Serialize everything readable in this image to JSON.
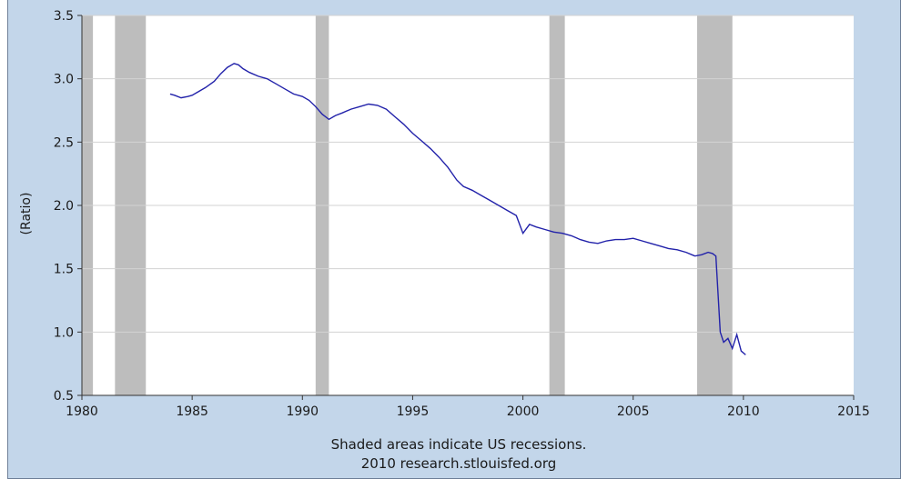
{
  "chart_data": {
    "type": "line",
    "ylabel": "(Ratio)",
    "xlim": [
      1980,
      2015
    ],
    "ylim": [
      0.5,
      3.5
    ],
    "x_ticks": [
      1980,
      1985,
      1990,
      1995,
      2000,
      2005,
      2010,
      2015
    ],
    "y_ticks": [
      "0.5",
      "1.0",
      "1.5",
      "2.0",
      "2.5",
      "3.0",
      "3.5"
    ],
    "grid": "horizontal",
    "recessions": [
      [
        1980.0,
        1980.5
      ],
      [
        1981.5,
        1982.9
      ],
      [
        1990.6,
        1991.2
      ],
      [
        2001.2,
        2001.9
      ],
      [
        2007.9,
        2009.5
      ]
    ],
    "series": [
      {
        "color": "#2222aa",
        "x": [
          1984.0,
          1984.2,
          1984.5,
          1984.8,
          1985.0,
          1985.3,
          1985.6,
          1986.0,
          1986.3,
          1986.6,
          1986.9,
          1987.1,
          1987.3,
          1987.6,
          1988.0,
          1988.4,
          1988.8,
          1989.2,
          1989.6,
          1990.0,
          1990.3,
          1990.6,
          1990.9,
          1991.2,
          1991.5,
          1991.8,
          1992.2,
          1992.6,
          1993.0,
          1993.4,
          1993.8,
          1994.2,
          1994.6,
          1995.0,
          1995.4,
          1995.8,
          1996.2,
          1996.6,
          1997.0,
          1997.3,
          1997.7,
          1998.1,
          1998.5,
          1998.9,
          1999.3,
          1999.7,
          2000.0,
          2000.3,
          2000.6,
          2001.0,
          2001.4,
          2001.8,
          2002.2,
          2002.6,
          2003.0,
          2003.4,
          2003.8,
          2004.2,
          2004.6,
          2005.0,
          2005.4,
          2005.8,
          2006.2,
          2006.6,
          2007.0,
          2007.4,
          2007.8,
          2008.1,
          2008.4,
          2008.6,
          2008.75,
          2008.85,
          2008.95,
          2009.1,
          2009.3,
          2009.5,
          2009.7,
          2009.9,
          2010.1
        ],
        "values": [
          2.88,
          2.87,
          2.85,
          2.86,
          2.87,
          2.9,
          2.93,
          2.98,
          3.04,
          3.09,
          3.12,
          3.11,
          3.08,
          3.05,
          3.02,
          3.0,
          2.96,
          2.92,
          2.88,
          2.86,
          2.83,
          2.78,
          2.72,
          2.68,
          2.71,
          2.73,
          2.76,
          2.78,
          2.8,
          2.79,
          2.76,
          2.7,
          2.64,
          2.57,
          2.51,
          2.45,
          2.38,
          2.3,
          2.2,
          2.15,
          2.12,
          2.08,
          2.04,
          2.0,
          1.96,
          1.92,
          1.78,
          1.85,
          1.83,
          1.81,
          1.79,
          1.78,
          1.76,
          1.73,
          1.71,
          1.7,
          1.72,
          1.73,
          1.73,
          1.74,
          1.72,
          1.7,
          1.68,
          1.66,
          1.65,
          1.63,
          1.6,
          1.61,
          1.63,
          1.62,
          1.6,
          1.3,
          1.0,
          0.92,
          0.95,
          0.87,
          0.98,
          0.85,
          0.82
        ]
      }
    ]
  },
  "footnote": {
    "line1": "Shaded areas indicate US recessions.",
    "line2": "2010 research.stlouisfed.org"
  }
}
